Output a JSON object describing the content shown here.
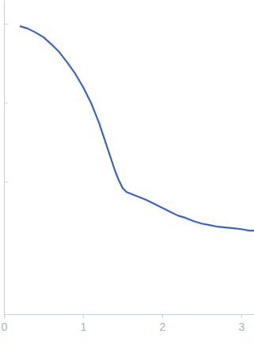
{
  "chart_data": {
    "type": "line",
    "log": "y",
    "tick_labels": "x",
    "color": "#3a66b8",
    "x": [
      0.2,
      0.3,
      0.4,
      0.5,
      0.6,
      0.7,
      0.8,
      0.9,
      1.0,
      1.1,
      1.2,
      1.3,
      1.4,
      1.45,
      1.5,
      1.55,
      1.6,
      1.7,
      1.8,
      1.9,
      2.0,
      2.1,
      2.2,
      2.3,
      2.4,
      2.5,
      2.6,
      2.7,
      2.8,
      2.9,
      3.0,
      3.1,
      3.16
    ],
    "values": [
      0.933,
      0.871,
      0.776,
      0.676,
      0.55,
      0.437,
      0.324,
      0.234,
      0.158,
      0.1,
      0.0562,
      0.0282,
      0.0141,
      0.0105,
      0.00832,
      0.00741,
      0.00708,
      0.00646,
      0.00589,
      0.00525,
      0.00468,
      0.00417,
      0.00372,
      0.00347,
      0.00316,
      0.00295,
      0.00282,
      0.00269,
      0.00263,
      0.00257,
      0.00251,
      0.0024,
      0.0024
    ],
    "xlim": [
      0,
      3.16
    ],
    "xticks": [
      0,
      1,
      2,
      3
    ],
    "ylim": [
      0.00021,
      2
    ],
    "yticks": [
      0.01,
      0.1,
      1
    ]
  }
}
